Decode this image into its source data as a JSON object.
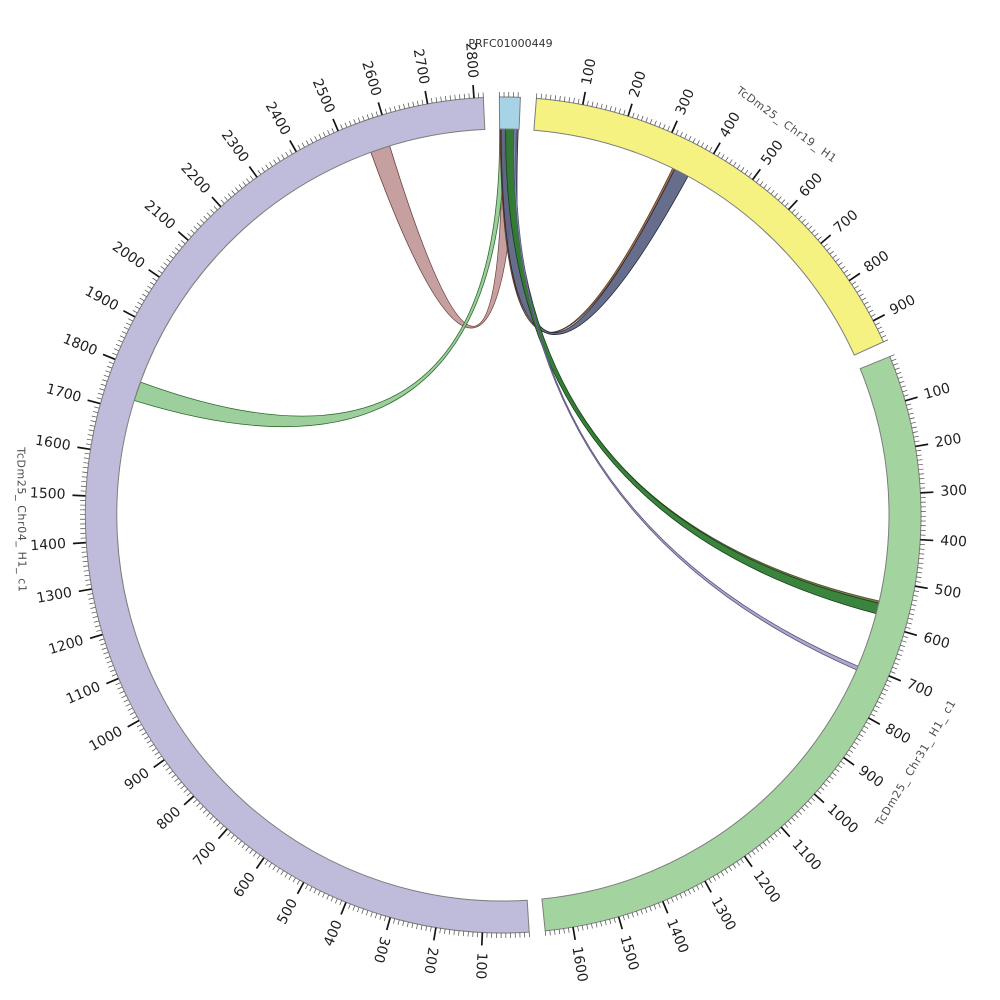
{
  "figure": {
    "background": "#ffffff",
    "contig_label": "PRFC01000449"
  },
  "chart_data": {
    "type": "chord",
    "title": "",
    "legend": "none",
    "grid": false,
    "layout": {
      "gap_deg": 2.2,
      "start_angle_deg": -0.5,
      "tick_minor_interval": 10,
      "tick_major_interval": 100,
      "label_radius_hint": "outside-ticks"
    },
    "segments": [
      {
        "id": "PRFC01000449",
        "label": "PRFC01000449",
        "color": "#a6d4e6",
        "stroke": "#6d7f87",
        "length": 45,
        "tick_major": null,
        "label_pos": 22,
        "label_orientation": "horizontal",
        "label_flip": false
      },
      {
        "id": "TcDm25_Chr19_H1",
        "label": "TcDm25_ Chr19_ H1",
        "color": "#f6f282",
        "stroke": "#8a8a7a",
        "length": 950,
        "tick_major": 100,
        "label_pos": 490,
        "label_orientation": "tangential",
        "label_flip": false
      },
      {
        "id": "TcDm25_Chr31_H1_c1",
        "label": "TcDm25_ Chr31_ H1_ c1",
        "color": "#a3d49f",
        "stroke": "#7f9a7d",
        "length": 1660,
        "tick_major": 100,
        "label_pos": 830,
        "label_orientation": "tangential",
        "label_flip": true
      },
      {
        "id": "TcDm25_Chr04_H1_c1",
        "label": "TcDm25_ Chr04_ H1_ c1",
        "color": "#bfbbdb",
        "stroke": "#8d8aa5",
        "length": 2820,
        "tick_major": 100,
        "label_pos": 1450,
        "label_orientation": "tangential",
        "label_flip": true
      }
    ],
    "links": [
      {
        "name": "link-prfc-chr04-2570",
        "from": {
          "segment": "PRFC01000449",
          "start": 6,
          "end": 40
        },
        "to": {
          "segment": "TcDm25_Chr04_H1_c1",
          "start": 2550,
          "end": 2596
        },
        "fill": "rgba(188,143,143,0.85)",
        "stroke": "#6b4240"
      },
      {
        "name": "link-prfc-chr04-1750",
        "from": {
          "segment": "PRFC01000449",
          "start": 0,
          "end": 13
        },
        "to": {
          "segment": "TcDm25_Chr04_H1_c1",
          "start": 1728,
          "end": 1773
        },
        "fill": "rgba(146,202,146,0.9)",
        "stroke": "#2d6b2f"
      },
      {
        "name": "link-prfc-chr19-edge",
        "from": {
          "segment": "PRFC01000449",
          "start": 1,
          "end": 5
        },
        "to": {
          "segment": "TcDm25_Chr19_H1",
          "start": 335,
          "end": 341
        },
        "fill": "rgba(160,100,60,0.9)",
        "stroke": "#5a3a20"
      },
      {
        "name": "link-prfc-chr19-main",
        "from": {
          "segment": "PRFC01000449",
          "start": 3,
          "end": 43
        },
        "to": {
          "segment": "TcDm25_Chr19_H1",
          "start": 340,
          "end": 375
        },
        "fill": "rgba(90,98,130,0.92)",
        "stroke": "#23263a"
      },
      {
        "name": "link-prfc-chr31-olive",
        "from": {
          "segment": "PRFC01000449",
          "start": 18,
          "end": 22
        },
        "to": {
          "segment": "TcDm25_Chr31_H1_c1",
          "start": 548,
          "end": 554
        },
        "fill": "rgba(110,110,60,0.9)",
        "stroke": "#4a4a28"
      },
      {
        "name": "link-prfc-chr31-green",
        "from": {
          "segment": "PRFC01000449",
          "start": 14,
          "end": 34
        },
        "to": {
          "segment": "TcDm25_Chr31_H1_c1",
          "start": 553,
          "end": 578
        },
        "fill": "rgba(47,125,51,0.95)",
        "stroke": "#173f19"
      },
      {
        "name": "link-prfc-chr31-lav",
        "from": {
          "segment": "PRFC01000449",
          "start": 34,
          "end": 38
        },
        "to": {
          "segment": "TcDm25_Chr31_H1_c1",
          "start": 707,
          "end": 716
        },
        "fill": "rgba(168,164,204,0.95)",
        "stroke": "#55517a"
      }
    ],
    "style": {
      "tick_minor_color": "#4a4a4a",
      "tick_major_color": "#141414",
      "tick_label_color": "#1f1f1f",
      "segment_label_color": "#4d4d4d",
      "band_outline": "#7d7d7d"
    }
  }
}
